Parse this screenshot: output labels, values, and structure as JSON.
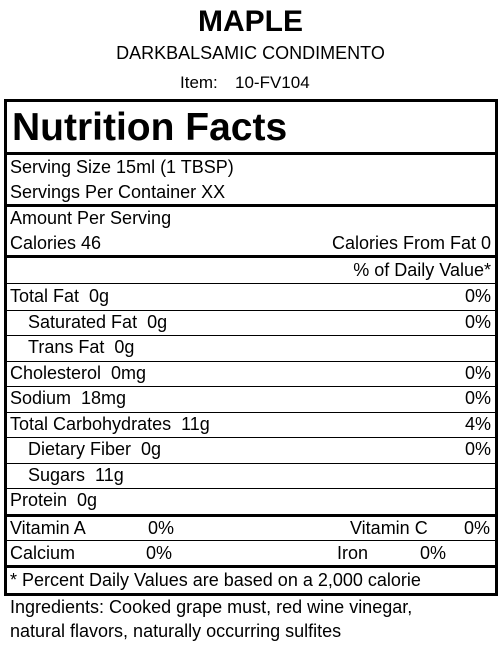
{
  "header": {
    "title": "MAPLE",
    "subtitle": "DARKBALSAMIC CONDIMENTO",
    "item_label": "Item:",
    "item": "10-FV104"
  },
  "label": {
    "title": "Nutrition Facts",
    "serving_size": "Serving Size  15ml (1 TBSP)",
    "servings": "Servings Per Container  XX",
    "amount": "Amount Per Serving",
    "calories": "Calories 46",
    "calories_fat": "Calories From Fat 0",
    "dv_header": "% of Daily Value*",
    "nutrients": [
      {
        "name": "Total Fat",
        "amount": "0g",
        "dv": "0%",
        "indent": false
      },
      {
        "name": "Saturated Fat",
        "amount": "0g",
        "dv": "0%",
        "indent": true
      },
      {
        "name": "Trans Fat",
        "amount": "0g",
        "indent": true
      },
      {
        "name": "Cholesterol",
        "amount": "0mg",
        "dv": "0%",
        "indent": false
      },
      {
        "name": "Sodium",
        "amount": "18mg",
        "dv": "0%",
        "indent": false
      },
      {
        "name": "Total Carbohydrates",
        "amount": "11g",
        "dv": "4%",
        "indent": false
      },
      {
        "name": "Dietary Fiber",
        "amount": "0g",
        "dv": "0%",
        "indent": true
      },
      {
        "name": "Sugars",
        "amount": "11g",
        "indent": true
      },
      {
        "name": "Protein",
        "amount": "0g",
        "indent": false
      }
    ],
    "vitamins": [
      [
        {
          "name": "Vitamin A",
          "dv": "0%"
        },
        {
          "name": "Vitamin C",
          "dv": "0%"
        }
      ],
      [
        {
          "name": "Calcium",
          "dv": "0%"
        },
        {
          "name": "Iron",
          "dv": "0%"
        }
      ]
    ],
    "footnote": "* Percent Daily Values are based on a 2,000 calorie"
  },
  "ingredients": [
    "Ingredients: Cooked grape must, red wine vinegar,",
    "natural flavors, naturally occurring sulfites"
  ]
}
